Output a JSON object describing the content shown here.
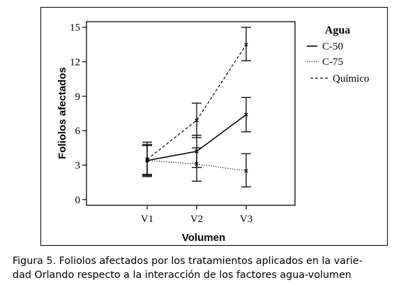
{
  "chart_data": {
    "type": "line",
    "xlabel": "Volumen",
    "ylabel": "Foliolos afectados",
    "categories": [
      "V1",
      "V2",
      "V3"
    ],
    "ylim": [
      -0.5,
      15.5
    ],
    "yticks": [
      0,
      3,
      6,
      9,
      12,
      15
    ],
    "ytick_labels": [
      "0",
      "3",
      "6",
      "9",
      "12",
      "15"
    ],
    "grid": false,
    "legend": {
      "title": "Agua",
      "position": "top-right",
      "entries": [
        {
          "name": "C-50",
          "style": "solid"
        },
        {
          "name": "C-75",
          "style": "dotted"
        },
        {
          "name": "Químico",
          "style": "dashed"
        }
      ]
    },
    "series": [
      {
        "name": "C-50",
        "style": "solid",
        "values": [
          3.4,
          4.2,
          7.4
        ],
        "err_low": [
          2.1,
          2.8,
          5.9
        ],
        "err_high": [
          4.8,
          5.6,
          8.9
        ]
      },
      {
        "name": "C-75",
        "style": "dotted",
        "values": [
          3.4,
          3.1,
          2.5
        ],
        "err_low": [
          2.0,
          1.6,
          1.1
        ],
        "err_high": [
          4.7,
          4.5,
          4.0
        ]
      },
      {
        "name": "Químico",
        "style": "dashed",
        "values": [
          3.5,
          6.9,
          13.5
        ],
        "err_low": [
          2.2,
          5.4,
          12.1
        ],
        "err_high": [
          5.0,
          8.4,
          15.0
        ]
      }
    ]
  },
  "caption": {
    "line1": "Figura 5. Foliolos afectados por los tratamientos aplicados en la varie-",
    "line2": "dad Orlando respecto a la interacción de los factores agua-volumen"
  }
}
